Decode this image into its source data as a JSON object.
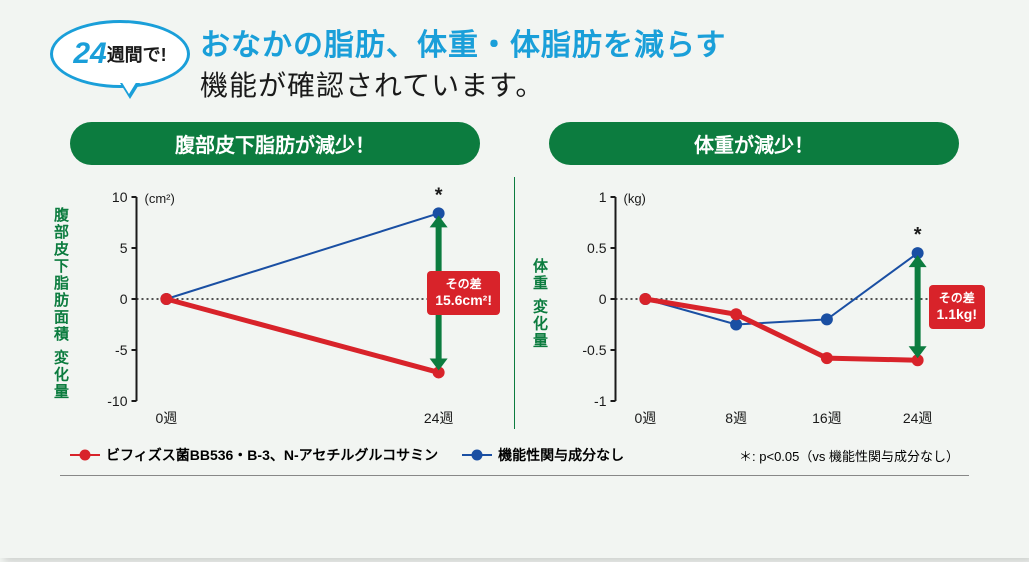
{
  "header": {
    "bubble_number": "24",
    "bubble_unit": "週間で!",
    "headline_top": "おなかの脂肪、体重・体脂肪を減らす",
    "headline_bottom": "機能が確認されています。"
  },
  "colors": {
    "brand_blue": "#1a9fd9",
    "brand_green": "#0c7c3f",
    "series_active": "#d8232a",
    "series_control": "#1a4fa3",
    "background": "#f2f5f2",
    "text": "#1a1a1a",
    "arrow_green": "#0c7c3f"
  },
  "chart1": {
    "type": "line",
    "title": "腹部皮下脂肪が減少！",
    "ylabel": "腹部皮下脂肪面積 変化量",
    "unit": "(cm²)",
    "x_ticks": [
      "0週",
      "24週"
    ],
    "y_ticks": [
      -10,
      -5,
      0,
      5,
      10
    ],
    "ylim": [
      -10,
      10
    ],
    "series_active": {
      "x": [
        0,
        1
      ],
      "y": [
        0,
        -7.2
      ],
      "color": "#d8232a",
      "line_width": 5
    },
    "series_control": {
      "x": [
        0,
        1
      ],
      "y": [
        0,
        8.4
      ],
      "color": "#1a4fa3",
      "line_width": 2
    },
    "significance": "*",
    "diff_label_top": "その差",
    "diff_label_value": "15.6cm²!"
  },
  "chart2": {
    "type": "line",
    "title": "体重が減少！",
    "ylabel": "体重 変化量",
    "unit": "(kg)",
    "x_ticks": [
      "0週",
      "8週",
      "16週",
      "24週"
    ],
    "y_ticks": [
      -1,
      -0.5,
      0,
      0.5,
      1
    ],
    "ylim": [
      -1,
      1
    ],
    "series_active": {
      "x": [
        0,
        1,
        2,
        3
      ],
      "y": [
        0,
        -0.15,
        -0.58,
        -0.6
      ],
      "color": "#d8232a",
      "line_width": 5
    },
    "series_control": {
      "x": [
        0,
        1,
        2,
        3
      ],
      "y": [
        0,
        -0.25,
        -0.2,
        0.45
      ],
      "color": "#1a4fa3",
      "line_width": 2
    },
    "significance": "*",
    "diff_label_top": "その差",
    "diff_label_value": "1.1kg!"
  },
  "legend": {
    "active": "ビフィズス菌BB536・B-3、N-アセチルグルコサミン",
    "control": "機能性関与成分なし",
    "note": "＊: p<0.05（vs 機能性関与成分なし）"
  }
}
